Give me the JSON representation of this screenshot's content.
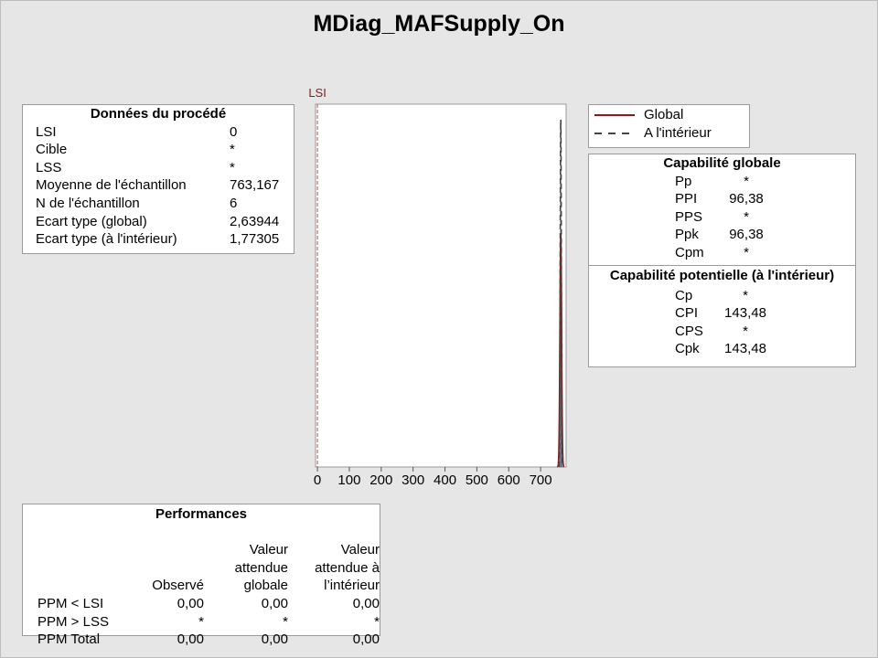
{
  "title": "MDiag_MAFSupply_On",
  "process_data": {
    "header": "Données du procédé",
    "rows": [
      {
        "label": "LSI",
        "value": "0"
      },
      {
        "label": "Cible",
        "value": "*"
      },
      {
        "label": "LSS",
        "value": "*"
      },
      {
        "label": "Moyenne de l'échantillon",
        "value": "763,167"
      },
      {
        "label": "N de l'échantillon",
        "value": "6"
      },
      {
        "label": "Ecart type (global)",
        "value": "2,63944"
      },
      {
        "label": "Ecart type (à l'intérieur)",
        "value": "1,77305"
      }
    ]
  },
  "legend": {
    "items": [
      {
        "label": "Global",
        "color": "#8b1a1a",
        "style": "solid"
      },
      {
        "label": "A l'intérieur",
        "color": "#444444",
        "style": "dashed"
      }
    ]
  },
  "capability": {
    "overall_header": "Capabilité globale",
    "overall": [
      {
        "label": "Pp",
        "value": "*"
      },
      {
        "label": "PPI",
        "value": "96,38"
      },
      {
        "label": "PPS",
        "value": "*"
      },
      {
        "label": "Ppk",
        "value": "96,38"
      },
      {
        "label": "Cpm",
        "value": "*"
      }
    ],
    "potential_header": "Capabilité potentielle (à l'intérieur)",
    "potential": [
      {
        "label": "Cp",
        "value": "*"
      },
      {
        "label": "CPI",
        "value": "143,48"
      },
      {
        "label": "CPS",
        "value": "*"
      },
      {
        "label": "Cpk",
        "value": "143,48"
      }
    ]
  },
  "performance": {
    "header": "Performances",
    "columns": [
      "Observé",
      "Valeur attendue globale",
      "Valeur attendue à l’intérieur"
    ],
    "col2_lines": [
      "Valeur",
      "attendue",
      "globale"
    ],
    "col3_lines": [
      "Valeur",
      "attendue à",
      "l’intérieur"
    ],
    "rows": [
      {
        "label": "PPM < LSI",
        "values": [
          "0,00",
          "0,00",
          "0,00"
        ]
      },
      {
        "label": "PPM > LSS",
        "values": [
          "*",
          "*",
          "*"
        ]
      },
      {
        "label": "PPM Total",
        "values": [
          "0,00",
          "0,00",
          "0,00"
        ]
      }
    ]
  },
  "chart_data": {
    "type": "histogram",
    "title": "",
    "xlabel": "",
    "ylabel": "",
    "xlim": [
      -6,
      780
    ],
    "x_ticks": [
      0,
      100,
      200,
      300,
      400,
      500,
      600,
      700
    ],
    "lsl": {
      "label": "LSI",
      "value": 0,
      "color": "#c0504d"
    },
    "bins": [
      {
        "x0": 759.5,
        "x1": 761.5,
        "height": 0.06
      },
      {
        "x0": 761.5,
        "x1": 763.5,
        "height": 0.19
      },
      {
        "x0": 763.5,
        "x1": 765.5,
        "height": 0.1
      },
      {
        "x0": 765.5,
        "x1": 767.5,
        "height": 0.05
      }
    ],
    "mean": 763.167,
    "sd_overall": 2.63944,
    "sd_within": 1.77305,
    "series": [
      {
        "name": "Global",
        "type": "normal",
        "mean": 763.167,
        "sd": 2.63944,
        "color": "#8b1a1a",
        "style": "solid"
      },
      {
        "name": "A l'intérieur",
        "type": "normal",
        "mean": 763.167,
        "sd": 1.77305,
        "color": "#444444",
        "style": "dashed"
      }
    ]
  }
}
